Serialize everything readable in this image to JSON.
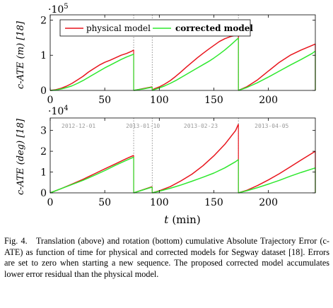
{
  "colors": {
    "physical": "#e8141c",
    "corrected": "#2ee82e",
    "separator": "#777777"
  },
  "chart_data": [
    {
      "type": "line",
      "ylabel": "c-ATE (m) [18]",
      "exponent_label": "·10^5",
      "exponent_base": "·10",
      "exponent_power": "5",
      "xlim": [
        0,
        243
      ],
      "ylim": [
        0,
        2.15
      ],
      "yticks": [
        0,
        1,
        2
      ],
      "xticks": [
        0,
        50,
        100,
        150,
        200
      ],
      "grid": false,
      "legend_position": "top",
      "separators": [
        76.5,
        93.5,
        172.5
      ],
      "series": [
        {
          "name": "physical model",
          "color_key": "physical",
          "bold": false,
          "segments": [
            {
              "x": [
                0,
                5,
                10,
                15,
                20,
                25,
                30,
                35,
                40,
                45,
                50,
                55,
                60,
                65,
                70,
                75,
                76.5
              ],
              "y": [
                0,
                0.02,
                0.06,
                0.12,
                0.2,
                0.3,
                0.4,
                0.52,
                0.62,
                0.72,
                0.8,
                0.86,
                0.93,
                1.0,
                1.05,
                1.12,
                1.15
              ]
            },
            {
              "x": [
                76.5,
                80,
                85,
                90,
                93.5
              ],
              "y": [
                0,
                0.02,
                0.05,
                0.08,
                0.1
              ]
            },
            {
              "x": [
                93.5,
                95,
                100,
                105,
                110,
                115,
                120,
                125,
                130,
                135,
                140,
                145,
                150,
                155,
                160,
                165,
                170,
                172.5
              ],
              "y": [
                0,
                0.04,
                0.1,
                0.18,
                0.28,
                0.4,
                0.53,
                0.67,
                0.8,
                0.93,
                1.05,
                1.17,
                1.28,
                1.39,
                1.47,
                1.53,
                1.57,
                1.6
              ]
            },
            {
              "x": [
                172.5,
                180,
                190,
                200,
                210,
                220,
                230,
                240,
                243
              ],
              "y": [
                0,
                0.1,
                0.3,
                0.55,
                0.8,
                1.0,
                1.15,
                1.28,
                1.32
              ]
            }
          ]
        },
        {
          "name": "corrected model",
          "color_key": "corrected",
          "bold": true,
          "segments": [
            {
              "x": [
                0,
                5,
                10,
                15,
                20,
                25,
                30,
                35,
                40,
                45,
                50,
                55,
                60,
                65,
                70,
                75,
                76.5
              ],
              "y": [
                0,
                0.01,
                0.04,
                0.08,
                0.13,
                0.2,
                0.28,
                0.37,
                0.46,
                0.55,
                0.64,
                0.72,
                0.8,
                0.88,
                0.95,
                1.01,
                1.03
              ]
            },
            {
              "x": [
                76.5,
                80,
                85,
                90,
                93.5
              ],
              "y": [
                0,
                0.02,
                0.04,
                0.07,
                0.09
              ]
            },
            {
              "x": [
                93.5,
                95,
                100,
                105,
                110,
                115,
                120,
                125,
                130,
                135,
                140,
                145,
                150,
                155,
                160,
                165,
                170,
                172.5
              ],
              "y": [
                0,
                0.02,
                0.07,
                0.13,
                0.2,
                0.28,
                0.37,
                0.46,
                0.55,
                0.64,
                0.73,
                0.82,
                0.92,
                1.03,
                1.15,
                1.28,
                1.42,
                1.49
              ]
            },
            {
              "x": [
                172.5,
                180,
                190,
                200,
                210,
                220,
                230,
                240,
                243
              ],
              "y": [
                0,
                0.08,
                0.22,
                0.38,
                0.55,
                0.72,
                0.88,
                1.05,
                1.12
              ]
            }
          ]
        }
      ]
    },
    {
      "type": "line",
      "ylabel": "c-ATE (deg) [18]",
      "xlabel": "t (min)",
      "xlabel_var": "t",
      "xlabel_unit": "(min)",
      "exponent_label": "·10^4",
      "exponent_base": "·10",
      "exponent_power": "4",
      "xlim": [
        0,
        243
      ],
      "ylim": [
        0,
        3.6
      ],
      "yticks": [
        0,
        1,
        2,
        3
      ],
      "xticks": [
        0,
        50,
        100,
        150,
        200
      ],
      "grid": false,
      "separators": [
        76.5,
        93.5,
        172.5
      ],
      "sequence_labels": [
        {
          "x": 26,
          "text": "2012-12-01"
        },
        {
          "x": 85,
          "text": "2013-01-10"
        },
        {
          "x": 138,
          "text": "2013-02-23"
        },
        {
          "x": 203,
          "text": "2013-04-05"
        }
      ],
      "series": [
        {
          "name": "physical model",
          "color_key": "physical",
          "segments": [
            {
              "x": [
                0,
                10,
                20,
                30,
                40,
                50,
                60,
                70,
                76.5
              ],
              "y": [
                0,
                0.2,
                0.42,
                0.65,
                0.9,
                1.15,
                1.4,
                1.65,
                1.8
              ]
            },
            {
              "x": [
                76.5,
                85,
                93.5
              ],
              "y": [
                0,
                0.15,
                0.3
              ]
            },
            {
              "x": [
                93.5,
                100,
                110,
                120,
                130,
                140,
                150,
                160,
                170,
                172.5
              ],
              "y": [
                0,
                0.1,
                0.3,
                0.58,
                0.9,
                1.3,
                1.78,
                2.33,
                3.0,
                3.3
              ]
            },
            {
              "x": [
                172.5,
                180,
                190,
                200,
                210,
                220,
                230,
                243
              ],
              "y": [
                0,
                0.12,
                0.35,
                0.62,
                0.92,
                1.25,
                1.58,
                2.0
              ]
            }
          ]
        },
        {
          "name": "corrected model",
          "color_key": "corrected",
          "segments": [
            {
              "x": [
                0,
                10,
                20,
                30,
                40,
                50,
                60,
                70,
                76.5
              ],
              "y": [
                0,
                0.2,
                0.4,
                0.6,
                0.83,
                1.07,
                1.33,
                1.57,
                1.72
              ]
            },
            {
              "x": [
                76.5,
                85,
                93.5
              ],
              "y": [
                0,
                0.14,
                0.28
              ]
            },
            {
              "x": [
                93.5,
                100,
                110,
                120,
                130,
                140,
                150,
                160,
                170,
                172.5
              ],
              "y": [
                0,
                0.08,
                0.22,
                0.38,
                0.56,
                0.75,
                0.95,
                1.2,
                1.5,
                1.6
              ]
            },
            {
              "x": [
                172.5,
                180,
                190,
                200,
                210,
                220,
                230,
                243
              ],
              "y": [
                0,
                0.1,
                0.25,
                0.42,
                0.6,
                0.8,
                0.98,
                1.2
              ]
            }
          ]
        }
      ]
    }
  ],
  "caption": {
    "label": "Fig. 4.",
    "text": "Translation (above) and rotation (bottom) cumulative Absolute Trajectory Error (c-ATE) as function of time for physical and corrected models for Segway dataset [18]. Errors are set to zero when starting a new sequence. The proposed corrected model accumulates lower error residual than the physical model."
  }
}
